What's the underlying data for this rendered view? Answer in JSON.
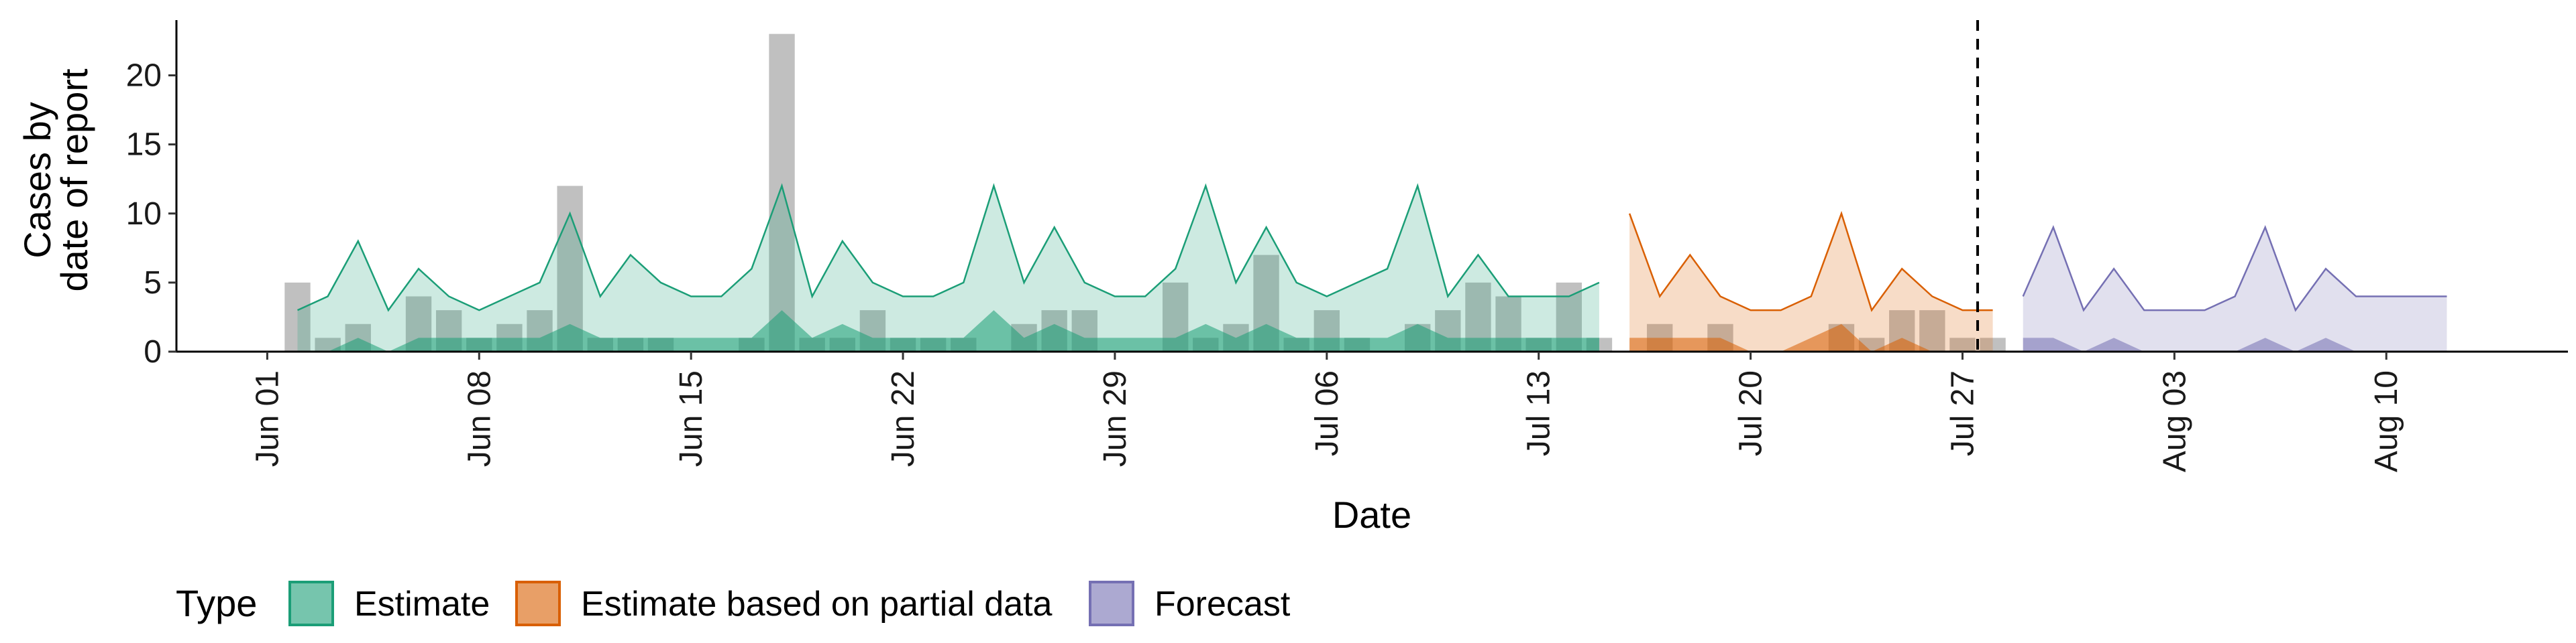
{
  "chart_data": {
    "type": "area",
    "xlabel": "Date",
    "ylabel_lines": [
      "Cases by",
      "date of report"
    ],
    "ylim": [
      0,
      24
    ],
    "y_ticks": [
      0,
      5,
      10,
      15,
      20
    ],
    "x_range": [
      "2020-05-29",
      "2020-08-16"
    ],
    "x_ticks": [
      {
        "date": "2020-06-01",
        "label": "Jun 01"
      },
      {
        "date": "2020-06-08",
        "label": "Jun 08"
      },
      {
        "date": "2020-06-15",
        "label": "Jun 15"
      },
      {
        "date": "2020-06-22",
        "label": "Jun 22"
      },
      {
        "date": "2020-06-29",
        "label": "Jun 29"
      },
      {
        "date": "2020-07-06",
        "label": "Jul 06"
      },
      {
        "date": "2020-07-13",
        "label": "Jul 13"
      },
      {
        "date": "2020-07-20",
        "label": "Jul 20"
      },
      {
        "date": "2020-07-27",
        "label": "Jul 27"
      },
      {
        "date": "2020-08-03",
        "label": "Aug 03"
      },
      {
        "date": "2020-08-10",
        "label": "Aug 10"
      }
    ],
    "forecast_line_date": "2020-07-28",
    "grid": false,
    "legend": {
      "title": "Type",
      "position": "bottom",
      "entries": [
        "Estimate",
        "Estimate based on partial data",
        "Forecast"
      ]
    },
    "colors": {
      "bars": "#9e9e9e",
      "Estimate": "#1b9e77",
      "Estimate based on partial data": "#d95f02",
      "Forecast": "#7570b3"
    },
    "reported_cases": {
      "dates": [
        "2020-06-02",
        "2020-06-03",
        "2020-06-04",
        "2020-06-05",
        "2020-06-06",
        "2020-06-07",
        "2020-06-08",
        "2020-06-09",
        "2020-06-10",
        "2020-06-11",
        "2020-06-12",
        "2020-06-13",
        "2020-06-14",
        "2020-06-15",
        "2020-06-16",
        "2020-06-17",
        "2020-06-18",
        "2020-06-19",
        "2020-06-20",
        "2020-06-21",
        "2020-06-22",
        "2020-06-23",
        "2020-06-24",
        "2020-06-25",
        "2020-06-26",
        "2020-06-27",
        "2020-06-28",
        "2020-06-29",
        "2020-06-30",
        "2020-07-01",
        "2020-07-02",
        "2020-07-03",
        "2020-07-04",
        "2020-07-05",
        "2020-07-06",
        "2020-07-07",
        "2020-07-08",
        "2020-07-09",
        "2020-07-10",
        "2020-07-11",
        "2020-07-12",
        "2020-07-13",
        "2020-07-14",
        "2020-07-15",
        "2020-07-16",
        "2020-07-17",
        "2020-07-18",
        "2020-07-19",
        "2020-07-20",
        "2020-07-21",
        "2020-07-22",
        "2020-07-23",
        "2020-07-24",
        "2020-07-25",
        "2020-07-26",
        "2020-07-27",
        "2020-07-28"
      ],
      "values": [
        5,
        1,
        2,
        0,
        4,
        3,
        1,
        2,
        3,
        12,
        1,
        1,
        1,
        0,
        0,
        1,
        23,
        1,
        1,
        3,
        1,
        1,
        1,
        0,
        2,
        3,
        3,
        0,
        0,
        5,
        1,
        2,
        7,
        1,
        3,
        1,
        0,
        2,
        3,
        5,
        4,
        1,
        5,
        1,
        0,
        2,
        0,
        2,
        0,
        0,
        0,
        2,
        1,
        3,
        3,
        1,
        1
      ]
    },
    "series": [
      {
        "name": "Estimate",
        "dates": [
          "2020-06-02",
          "2020-06-03",
          "2020-06-04",
          "2020-06-05",
          "2020-06-06",
          "2020-06-07",
          "2020-06-08",
          "2020-06-09",
          "2020-06-10",
          "2020-06-11",
          "2020-06-12",
          "2020-06-13",
          "2020-06-14",
          "2020-06-15",
          "2020-06-16",
          "2020-06-17",
          "2020-06-18",
          "2020-06-19",
          "2020-06-20",
          "2020-06-21",
          "2020-06-22",
          "2020-06-23",
          "2020-06-24",
          "2020-06-25",
          "2020-06-26",
          "2020-06-27",
          "2020-06-28",
          "2020-06-29",
          "2020-06-30",
          "2020-07-01",
          "2020-07-02",
          "2020-07-03",
          "2020-07-04",
          "2020-07-05",
          "2020-07-06",
          "2020-07-07",
          "2020-07-08",
          "2020-07-09",
          "2020-07-10",
          "2020-07-11",
          "2020-07-12",
          "2020-07-13",
          "2020-07-14",
          "2020-07-15"
        ],
        "upper": [
          3,
          4,
          8,
          3,
          6,
          4,
          3,
          4,
          5,
          10,
          4,
          7,
          5,
          4,
          4,
          6,
          12,
          4,
          8,
          5,
          4,
          4,
          5,
          12,
          5,
          9,
          5,
          4,
          4,
          6,
          12,
          5,
          9,
          5,
          4,
          5,
          6,
          12,
          4,
          7,
          4,
          4,
          4,
          5
        ],
        "lower": [
          0,
          0,
          1,
          0,
          1,
          1,
          1,
          1,
          1,
          2,
          1,
          1,
          1,
          1,
          1,
          1,
          3,
          1,
          2,
          1,
          1,
          1,
          1,
          3,
          1,
          2,
          1,
          1,
          1,
          1,
          2,
          1,
          2,
          1,
          1,
          1,
          1,
          2,
          1,
          1,
          1,
          1,
          1,
          1
        ]
      },
      {
        "name": "Estimate based on partial data",
        "dates": [
          "2020-07-16",
          "2020-07-17",
          "2020-07-18",
          "2020-07-19",
          "2020-07-20",
          "2020-07-21",
          "2020-07-22",
          "2020-07-23",
          "2020-07-24",
          "2020-07-25",
          "2020-07-26",
          "2020-07-27",
          "2020-07-28"
        ],
        "upper": [
          10,
          4,
          7,
          4,
          3,
          3,
          4,
          10,
          3,
          6,
          4,
          3,
          3
        ],
        "lower": [
          1,
          1,
          1,
          1,
          0,
          0,
          1,
          2,
          0,
          1,
          0,
          0,
          0
        ]
      },
      {
        "name": "Forecast",
        "dates": [
          "2020-07-29",
          "2020-07-30",
          "2020-07-31",
          "2020-08-01",
          "2020-08-02",
          "2020-08-03",
          "2020-08-04",
          "2020-08-05",
          "2020-08-06",
          "2020-08-07",
          "2020-08-08",
          "2020-08-09",
          "2020-08-10",
          "2020-08-11",
          "2020-08-12"
        ],
        "upper": [
          4,
          9,
          3,
          6,
          3,
          3,
          3,
          4,
          9,
          3,
          6,
          4,
          4,
          4,
          4
        ],
        "lower": [
          1,
          1,
          0,
          1,
          0,
          0,
          0,
          0,
          1,
          0,
          1,
          0,
          0,
          0,
          0
        ]
      }
    ]
  }
}
